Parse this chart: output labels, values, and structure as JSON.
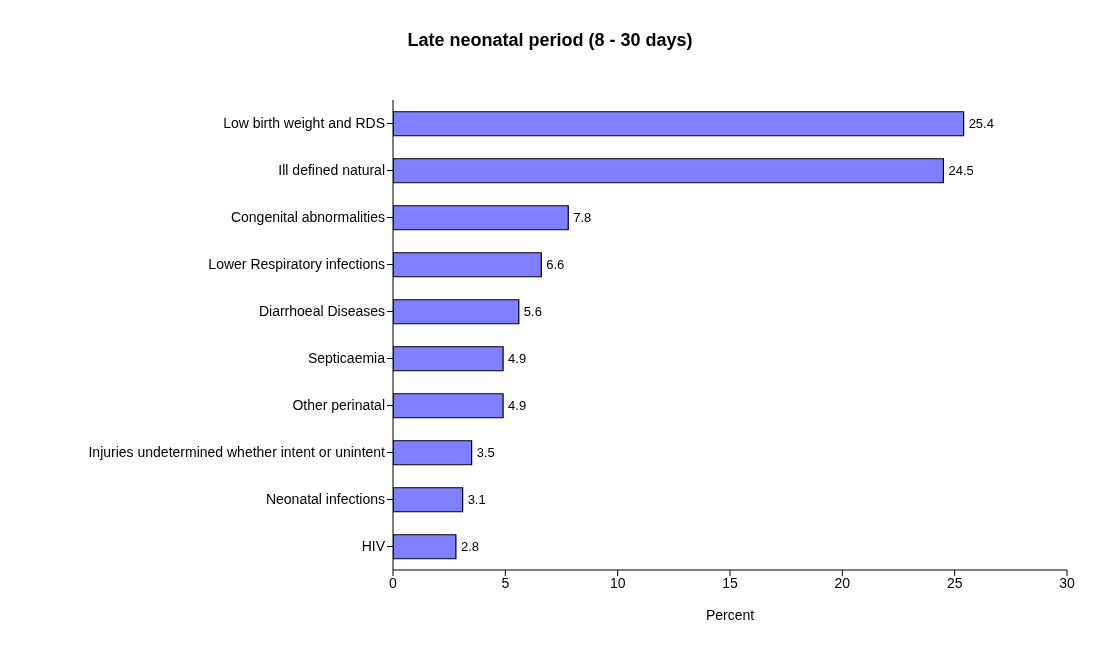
{
  "chart_data": {
    "type": "bar",
    "orientation": "horizontal",
    "title": "Late neonatal period (8 - 30 days)",
    "xlabel": "Percent",
    "categories": [
      "Low birth weight and RDS",
      "Ill defined natural",
      "Congenital abnormalities",
      "Lower Respiratory infections",
      "Diarrhoeal Diseases",
      "Septicaemia",
      "Other perinatal",
      "Injuries undetermined whether intent or unintent",
      "Neonatal infections",
      "HIV"
    ],
    "values": [
      25.4,
      24.5,
      7.8,
      6.6,
      5.6,
      4.9,
      4.9,
      3.5,
      3.1,
      2.8
    ],
    "color": "#8080ff",
    "xlim": [
      0,
      30
    ],
    "xticks": [
      0,
      5,
      10,
      15,
      20,
      25,
      30
    ],
    "data_labels": true
  }
}
